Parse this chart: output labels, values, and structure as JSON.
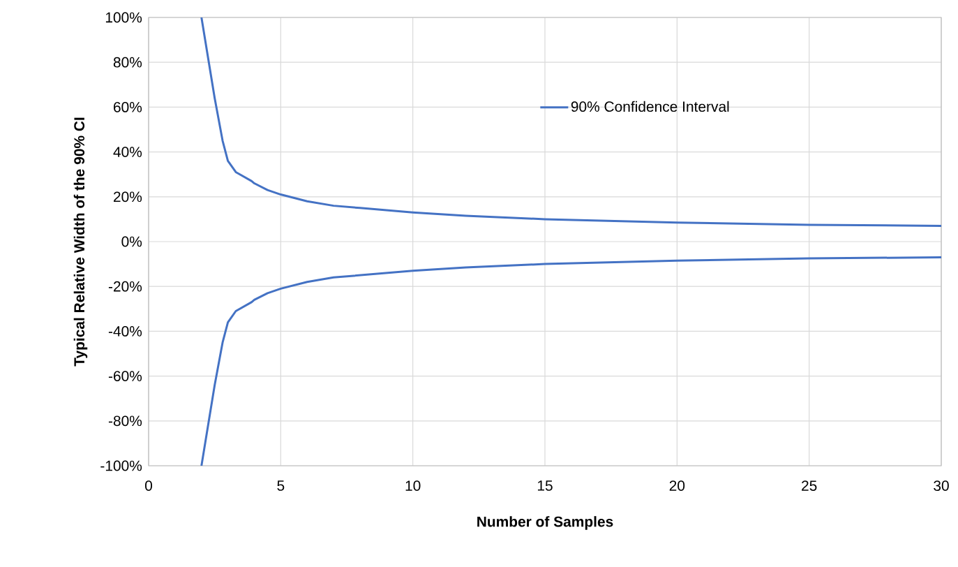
{
  "chart_data": {
    "type": "line",
    "xlabel": "Number of Samples",
    "ylabel": "Typical Relative Width of the 90%  CI",
    "x": [
      2,
      2.5,
      2.8,
      3,
      3.3,
      3.9,
      4,
      4.5,
      5,
      6,
      7,
      8,
      10,
      12,
      15,
      20,
      25,
      30
    ],
    "series": [
      {
        "name": "90% Confidence Interval",
        "color": "#4472c4",
        "values": [
          100,
          64,
          45,
          36,
          31,
          27,
          26,
          23,
          21,
          18,
          16,
          15,
          13,
          11.5,
          10,
          8.5,
          7.5,
          7
        ]
      },
      {
        "color": "#4472c4",
        "values": [
          -100,
          -64,
          -45,
          -36,
          -31,
          -27,
          -26,
          -23,
          -21,
          -18,
          -16,
          -15,
          -13,
          -11.5,
          -10,
          -8.5,
          -7.5,
          -7
        ]
      }
    ],
    "xlim": [
      0,
      30
    ],
    "xticks": [
      0,
      5,
      10,
      15,
      20,
      25,
      30
    ],
    "ylim": [
      -100,
      100
    ],
    "yticks": [
      {
        "value": -100,
        "label": "-100%"
      },
      {
        "value": -80,
        "label": "-80%"
      },
      {
        "value": -60,
        "label": "-60%"
      },
      {
        "value": -40,
        "label": "-40%"
      },
      {
        "value": -20,
        "label": "-20%"
      },
      {
        "value": 0,
        "label": "0%"
      },
      {
        "value": 20,
        "label": "20%"
      },
      {
        "value": 40,
        "label": "40%"
      },
      {
        "value": 60,
        "label": "60%"
      },
      {
        "value": 80,
        "label": "80%"
      },
      {
        "value": 100,
        "label": "100%"
      }
    ],
    "grid": true,
    "legend": "top right",
    "marker": "none",
    "line_style": "solid"
  }
}
